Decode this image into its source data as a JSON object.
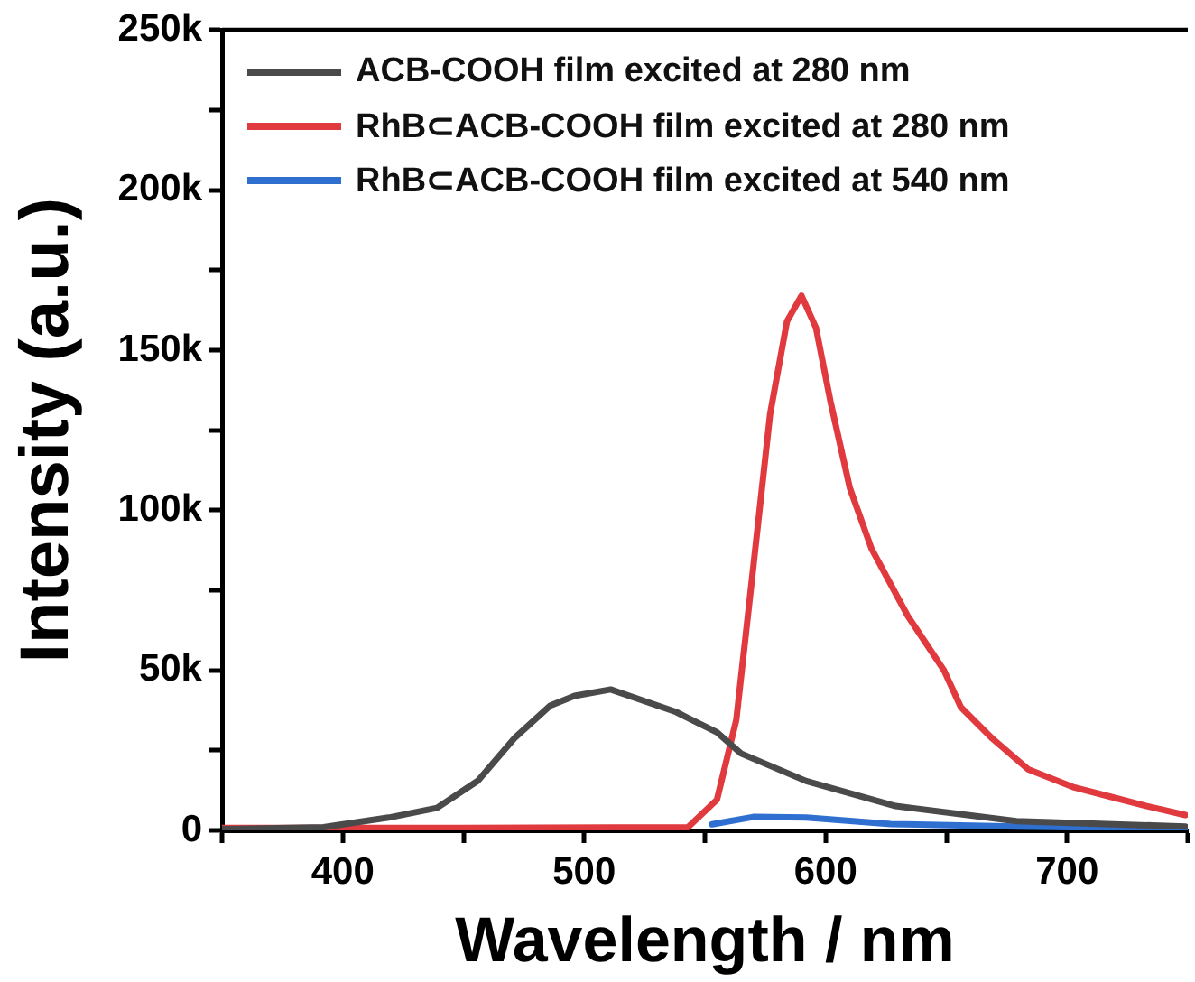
{
  "chart_data": {
    "type": "line",
    "xlabel": "Wavelength / nm",
    "ylabel": "Intensity (a.u.)",
    "xlim": [
      350,
      750
    ],
    "xticks": [
      {
        "value": 350,
        "label": null
      },
      400,
      {
        "value": 450,
        "label": null
      },
      500,
      {
        "value": 550,
        "label": null
      },
      600,
      {
        "value": 650,
        "label": null
      },
      700,
      {
        "value": 750,
        "label": null
      }
    ],
    "ylim": [
      0,
      250000
    ],
    "yticks": [
      {
        "value": 0,
        "label": "0"
      },
      {
        "value": 25000,
        "label": null
      },
      {
        "value": 50000,
        "label": "50k"
      },
      {
        "value": 75000,
        "label": null
      },
      {
        "value": 100000,
        "label": "100k"
      },
      {
        "value": 125000,
        "label": null
      },
      {
        "value": 150000,
        "label": "150k"
      },
      {
        "value": 175000,
        "label": null
      },
      {
        "value": 200000,
        "label": "200k"
      },
      {
        "value": 225000,
        "label": null
      },
      {
        "value": 250000,
        "label": "250k"
      }
    ],
    "grid": false,
    "legend": "top left",
    "marker": "none",
    "line_style": "solid",
    "series": [
      {
        "name": "ACB-COOH film excited at 280 nm",
        "color": "#4a4a4a",
        "x": [
          350,
          392,
          419,
          439,
          456,
          471,
          486,
          496,
          511,
          538,
          555,
          565,
          592,
          629,
          679,
          749
        ],
        "values": [
          400,
          1000,
          4000,
          7000,
          15500,
          28700,
          39000,
          42000,
          44000,
          37000,
          30600,
          24000,
          15400,
          7600,
          2900,
          1200
        ]
      },
      {
        "name": "RhB⊂ACB-COOH film excited at 280 nm",
        "color": "#e0393e",
        "x": [
          350,
          450,
          543,
          555,
          563,
          570,
          577,
          584,
          590,
          596,
          602,
          610,
          619,
          634,
          649,
          656,
          669,
          684,
          703,
          718,
          733,
          749
        ],
        "values": [
          800,
          800,
          1000,
          9600,
          34500,
          82000,
          130000,
          159000,
          167000,
          157000,
          134000,
          107000,
          88000,
          67000,
          50000,
          38500,
          28700,
          19000,
          13400,
          10500,
          7600,
          4800
        ]
      },
      {
        "name": "RhB⊂ACB-COOH film excited at 540 nm",
        "color": "#2e6fd0",
        "x": [
          553,
          570,
          592,
          627,
          679,
          749
        ],
        "values": [
          1900,
          4200,
          4000,
          2000,
          1200,
          500
        ]
      }
    ]
  }
}
